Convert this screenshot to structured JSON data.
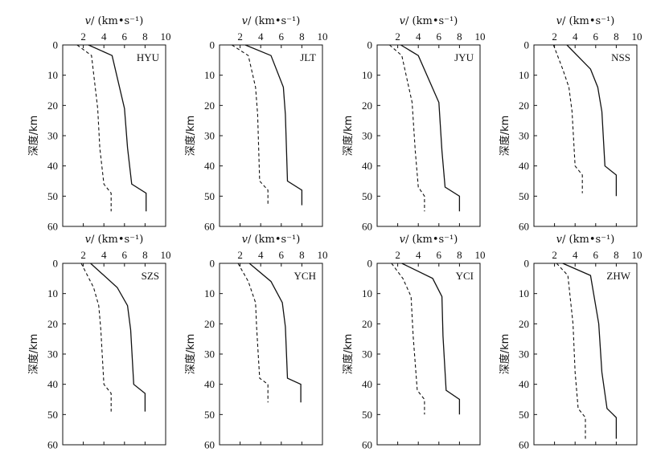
{
  "chart_data": {
    "type": "line",
    "x_axis_title": "v/ (km•s⁻¹)",
    "x_axis_title_prefix": "v",
    "x_axis_title_suffix": "/ (km•s⁻¹)",
    "y_axis_title": "深度/km",
    "xlim": [
      0,
      10
    ],
    "ylim": [
      0,
      60
    ],
    "x_ticks": [
      "2",
      "4",
      "6",
      "8",
      "10"
    ],
    "y_ticks": [
      "0",
      "10",
      "20",
      "30",
      "40",
      "50",
      "60"
    ],
    "y_inverted": true,
    "grid": false,
    "panels": [
      {
        "station": "HYU",
        "series": [
          {
            "style": "solid",
            "points": [
              [
                2.5,
                0
              ],
              [
                4.8,
                3.5
              ],
              [
                6.0,
                21
              ],
              [
                6.3,
                34
              ],
              [
                6.7,
                46
              ],
              [
                8.1,
                49
              ],
              [
                8.1,
                55
              ]
            ]
          },
          {
            "style": "dashed",
            "points": [
              [
                1.4,
                0
              ],
              [
                2.8,
                3.5
              ],
              [
                3.4,
                21
              ],
              [
                3.6,
                34
              ],
              [
                4.0,
                46
              ],
              [
                4.7,
                49
              ],
              [
                4.7,
                55
              ]
            ]
          }
        ]
      },
      {
        "station": "JLT",
        "series": [
          {
            "style": "solid",
            "points": [
              [
                2.5,
                0
              ],
              [
                5.0,
                3.5
              ],
              [
                6.2,
                14
              ],
              [
                6.4,
                23
              ],
              [
                6.6,
                45
              ],
              [
                8.0,
                48
              ],
              [
                8.0,
                53
              ]
            ]
          },
          {
            "style": "dashed",
            "points": [
              [
                1.2,
                0
              ],
              [
                2.8,
                3.5
              ],
              [
                3.5,
                14
              ],
              [
                3.7,
                23
              ],
              [
                3.9,
                45
              ],
              [
                4.7,
                48
              ],
              [
                4.7,
                53
              ]
            ]
          }
        ]
      },
      {
        "station": "JYU",
        "series": [
          {
            "style": "solid",
            "points": [
              [
                2.3,
                0
              ],
              [
                4.0,
                3.5
              ],
              [
                6.0,
                19
              ],
              [
                6.3,
                35
              ],
              [
                6.6,
                47
              ],
              [
                8.0,
                50
              ],
              [
                8.0,
                55
              ]
            ]
          },
          {
            "style": "dashed",
            "points": [
              [
                1.2,
                0
              ],
              [
                2.4,
                3.5
              ],
              [
                3.4,
                19
              ],
              [
                3.7,
                35
              ],
              [
                4.0,
                47
              ],
              [
                4.6,
                50
              ],
              [
                4.6,
                55
              ]
            ]
          }
        ]
      },
      {
        "station": "NSS",
        "series": [
          {
            "style": "solid",
            "points": [
              [
                3.2,
                0
              ],
              [
                5.5,
                8
              ],
              [
                6.2,
                14
              ],
              [
                6.6,
                22
              ],
              [
                6.9,
                40
              ],
              [
                8.0,
                43
              ],
              [
                8.0,
                50
              ]
            ]
          },
          {
            "style": "dashed",
            "points": [
              [
                1.9,
                0
              ],
              [
                2.8,
                8
              ],
              [
                3.4,
                14
              ],
              [
                3.7,
                22
              ],
              [
                4.0,
                40
              ],
              [
                4.7,
                43
              ],
              [
                4.7,
                49
              ]
            ]
          }
        ]
      },
      {
        "station": "SZS",
        "series": [
          {
            "style": "solid",
            "points": [
              [
                2.7,
                0
              ],
              [
                5.3,
                8
              ],
              [
                6.3,
                14
              ],
              [
                6.6,
                22
              ],
              [
                6.9,
                40
              ],
              [
                8.0,
                43
              ],
              [
                8.0,
                49
              ]
            ]
          },
          {
            "style": "dashed",
            "points": [
              [
                1.8,
                0
              ],
              [
                3.0,
                8
              ],
              [
                3.5,
                14
              ],
              [
                3.7,
                22
              ],
              [
                4.0,
                40
              ],
              [
                4.7,
                43
              ],
              [
                4.7,
                49
              ]
            ]
          }
        ]
      },
      {
        "station": "YCH",
        "series": [
          {
            "style": "solid",
            "points": [
              [
                2.9,
                0
              ],
              [
                5.0,
                6
              ],
              [
                6.1,
                13
              ],
              [
                6.4,
                21
              ],
              [
                6.6,
                38
              ],
              [
                7.9,
                40
              ],
              [
                7.9,
                46
              ]
            ]
          },
          {
            "style": "dashed",
            "points": [
              [
                1.8,
                0
              ],
              [
                2.8,
                6
              ],
              [
                3.5,
                13
              ],
              [
                3.6,
                21
              ],
              [
                3.9,
                38
              ],
              [
                4.7,
                40
              ],
              [
                4.7,
                46
              ]
            ]
          }
        ]
      },
      {
        "station": "YCI",
        "series": [
          {
            "style": "solid",
            "points": [
              [
                2.4,
                0
              ],
              [
                5.4,
                5
              ],
              [
                6.3,
                11
              ],
              [
                6.4,
                24
              ],
              [
                6.7,
                42
              ],
              [
                8.0,
                45
              ],
              [
                8.0,
                50
              ]
            ]
          },
          {
            "style": "dashed",
            "points": [
              [
                1.4,
                0
              ],
              [
                2.5,
                5
              ],
              [
                3.3,
                11
              ],
              [
                3.5,
                24
              ],
              [
                3.9,
                42
              ],
              [
                4.6,
                45
              ],
              [
                4.6,
                50
              ]
            ]
          }
        ]
      },
      {
        "station": "ZHW",
        "series": [
          {
            "style": "solid",
            "points": [
              [
                2.8,
                0
              ],
              [
                5.5,
                4
              ],
              [
                6.3,
                20
              ],
              [
                6.6,
                36
              ],
              [
                7.1,
                48
              ],
              [
                8.0,
                51
              ],
              [
                8.0,
                58
              ]
            ]
          },
          {
            "style": "dashed",
            "points": [
              [
                2.2,
                0
              ],
              [
                3.3,
                4
              ],
              [
                3.8,
                20
              ],
              [
                4.0,
                36
              ],
              [
                4.3,
                48
              ],
              [
                5.0,
                51
              ],
              [
                5.0,
                58
              ]
            ]
          }
        ]
      }
    ]
  }
}
